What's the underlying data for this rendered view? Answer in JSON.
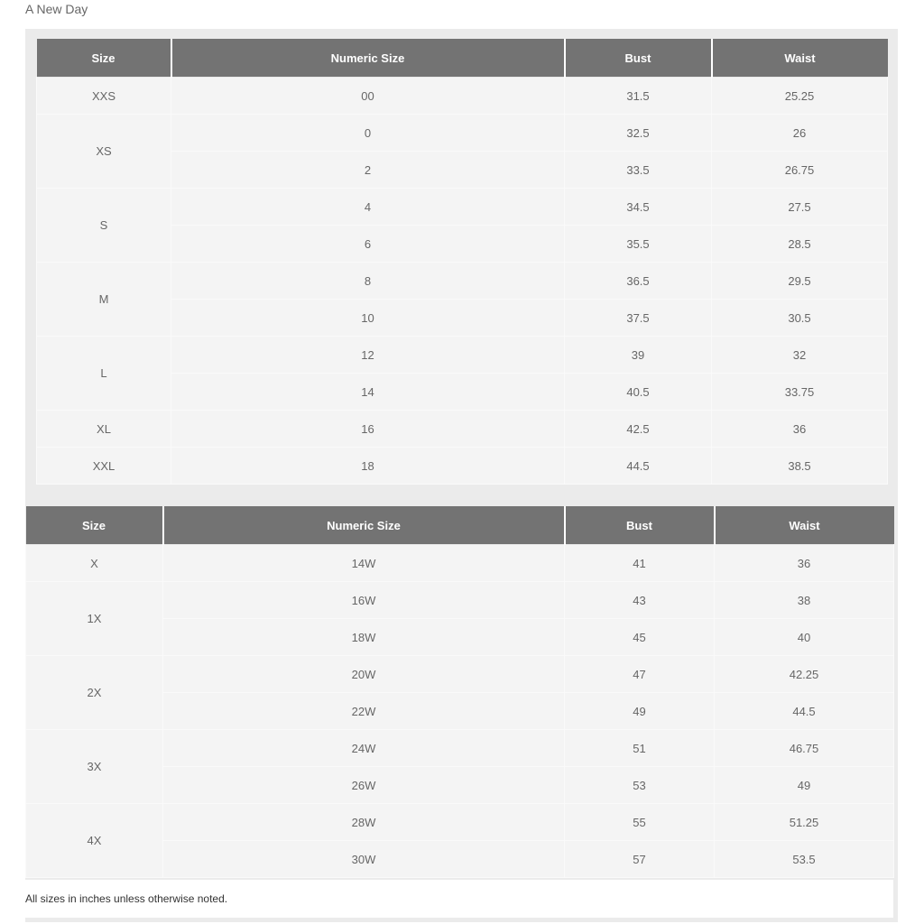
{
  "brand": "A New Day",
  "tables": [
    {
      "headers": [
        "Size",
        "Numeric Size",
        "Bust",
        "Waist"
      ],
      "groups": [
        {
          "size": "XXS",
          "rows": [
            [
              "00",
              "31.5",
              "25.25"
            ]
          ]
        },
        {
          "size": "XS",
          "rows": [
            [
              "0",
              "32.5",
              "26"
            ],
            [
              "2",
              "33.5",
              "26.75"
            ]
          ]
        },
        {
          "size": "S",
          "rows": [
            [
              "4",
              "34.5",
              "27.5"
            ],
            [
              "6",
              "35.5",
              "28.5"
            ]
          ]
        },
        {
          "size": "M",
          "rows": [
            [
              "8",
              "36.5",
              "29.5"
            ],
            [
              "10",
              "37.5",
              "30.5"
            ]
          ]
        },
        {
          "size": "L",
          "rows": [
            [
              "12",
              "39",
              "32"
            ],
            [
              "14",
              "40.5",
              "33.75"
            ]
          ]
        },
        {
          "size": "XL",
          "rows": [
            [
              "16",
              "42.5",
              "36"
            ]
          ]
        },
        {
          "size": "XXL",
          "rows": [
            [
              "18",
              "44.5",
              "38.5"
            ]
          ]
        }
      ]
    },
    {
      "headers": [
        "Size",
        "Numeric Size",
        "Bust",
        "Waist"
      ],
      "groups": [
        {
          "size": "X",
          "rows": [
            [
              "14W",
              "41",
              "36"
            ]
          ]
        },
        {
          "size": "1X",
          "rows": [
            [
              "16W",
              "43",
              "38"
            ],
            [
              "18W",
              "45",
              "40"
            ]
          ]
        },
        {
          "size": "2X",
          "rows": [
            [
              "20W",
              "47",
              "42.25"
            ],
            [
              "22W",
              "49",
              "44.5"
            ]
          ]
        },
        {
          "size": "3X",
          "rows": [
            [
              "24W",
              "51",
              "46.75"
            ],
            [
              "26W",
              "53",
              "49"
            ]
          ]
        },
        {
          "size": "4X",
          "rows": [
            [
              "28W",
              "55",
              "51.25"
            ],
            [
              "30W",
              "57",
              "53.5"
            ]
          ]
        }
      ]
    }
  ],
  "footnote": "All sizes in inches unless otherwise noted."
}
